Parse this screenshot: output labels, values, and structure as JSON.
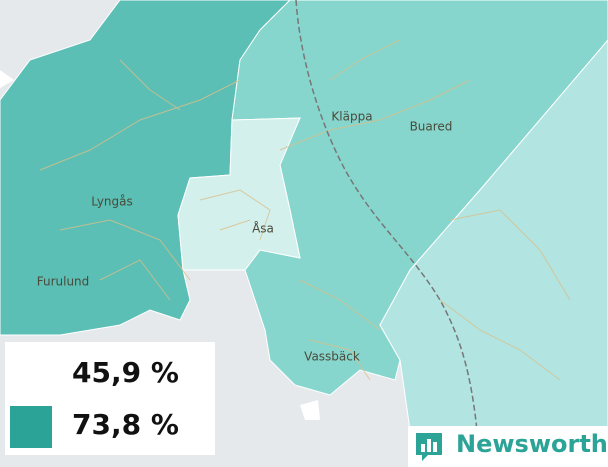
{
  "places": [
    "Kläppa",
    "Buared",
    "Lyngås",
    "Åsa",
    "Furulund",
    "Vassbäck"
  ],
  "legend": [
    {
      "label": "45,9 %"
    },
    {
      "label": "73,8 %"
    }
  ],
  "brand": "Newsworthy"
}
